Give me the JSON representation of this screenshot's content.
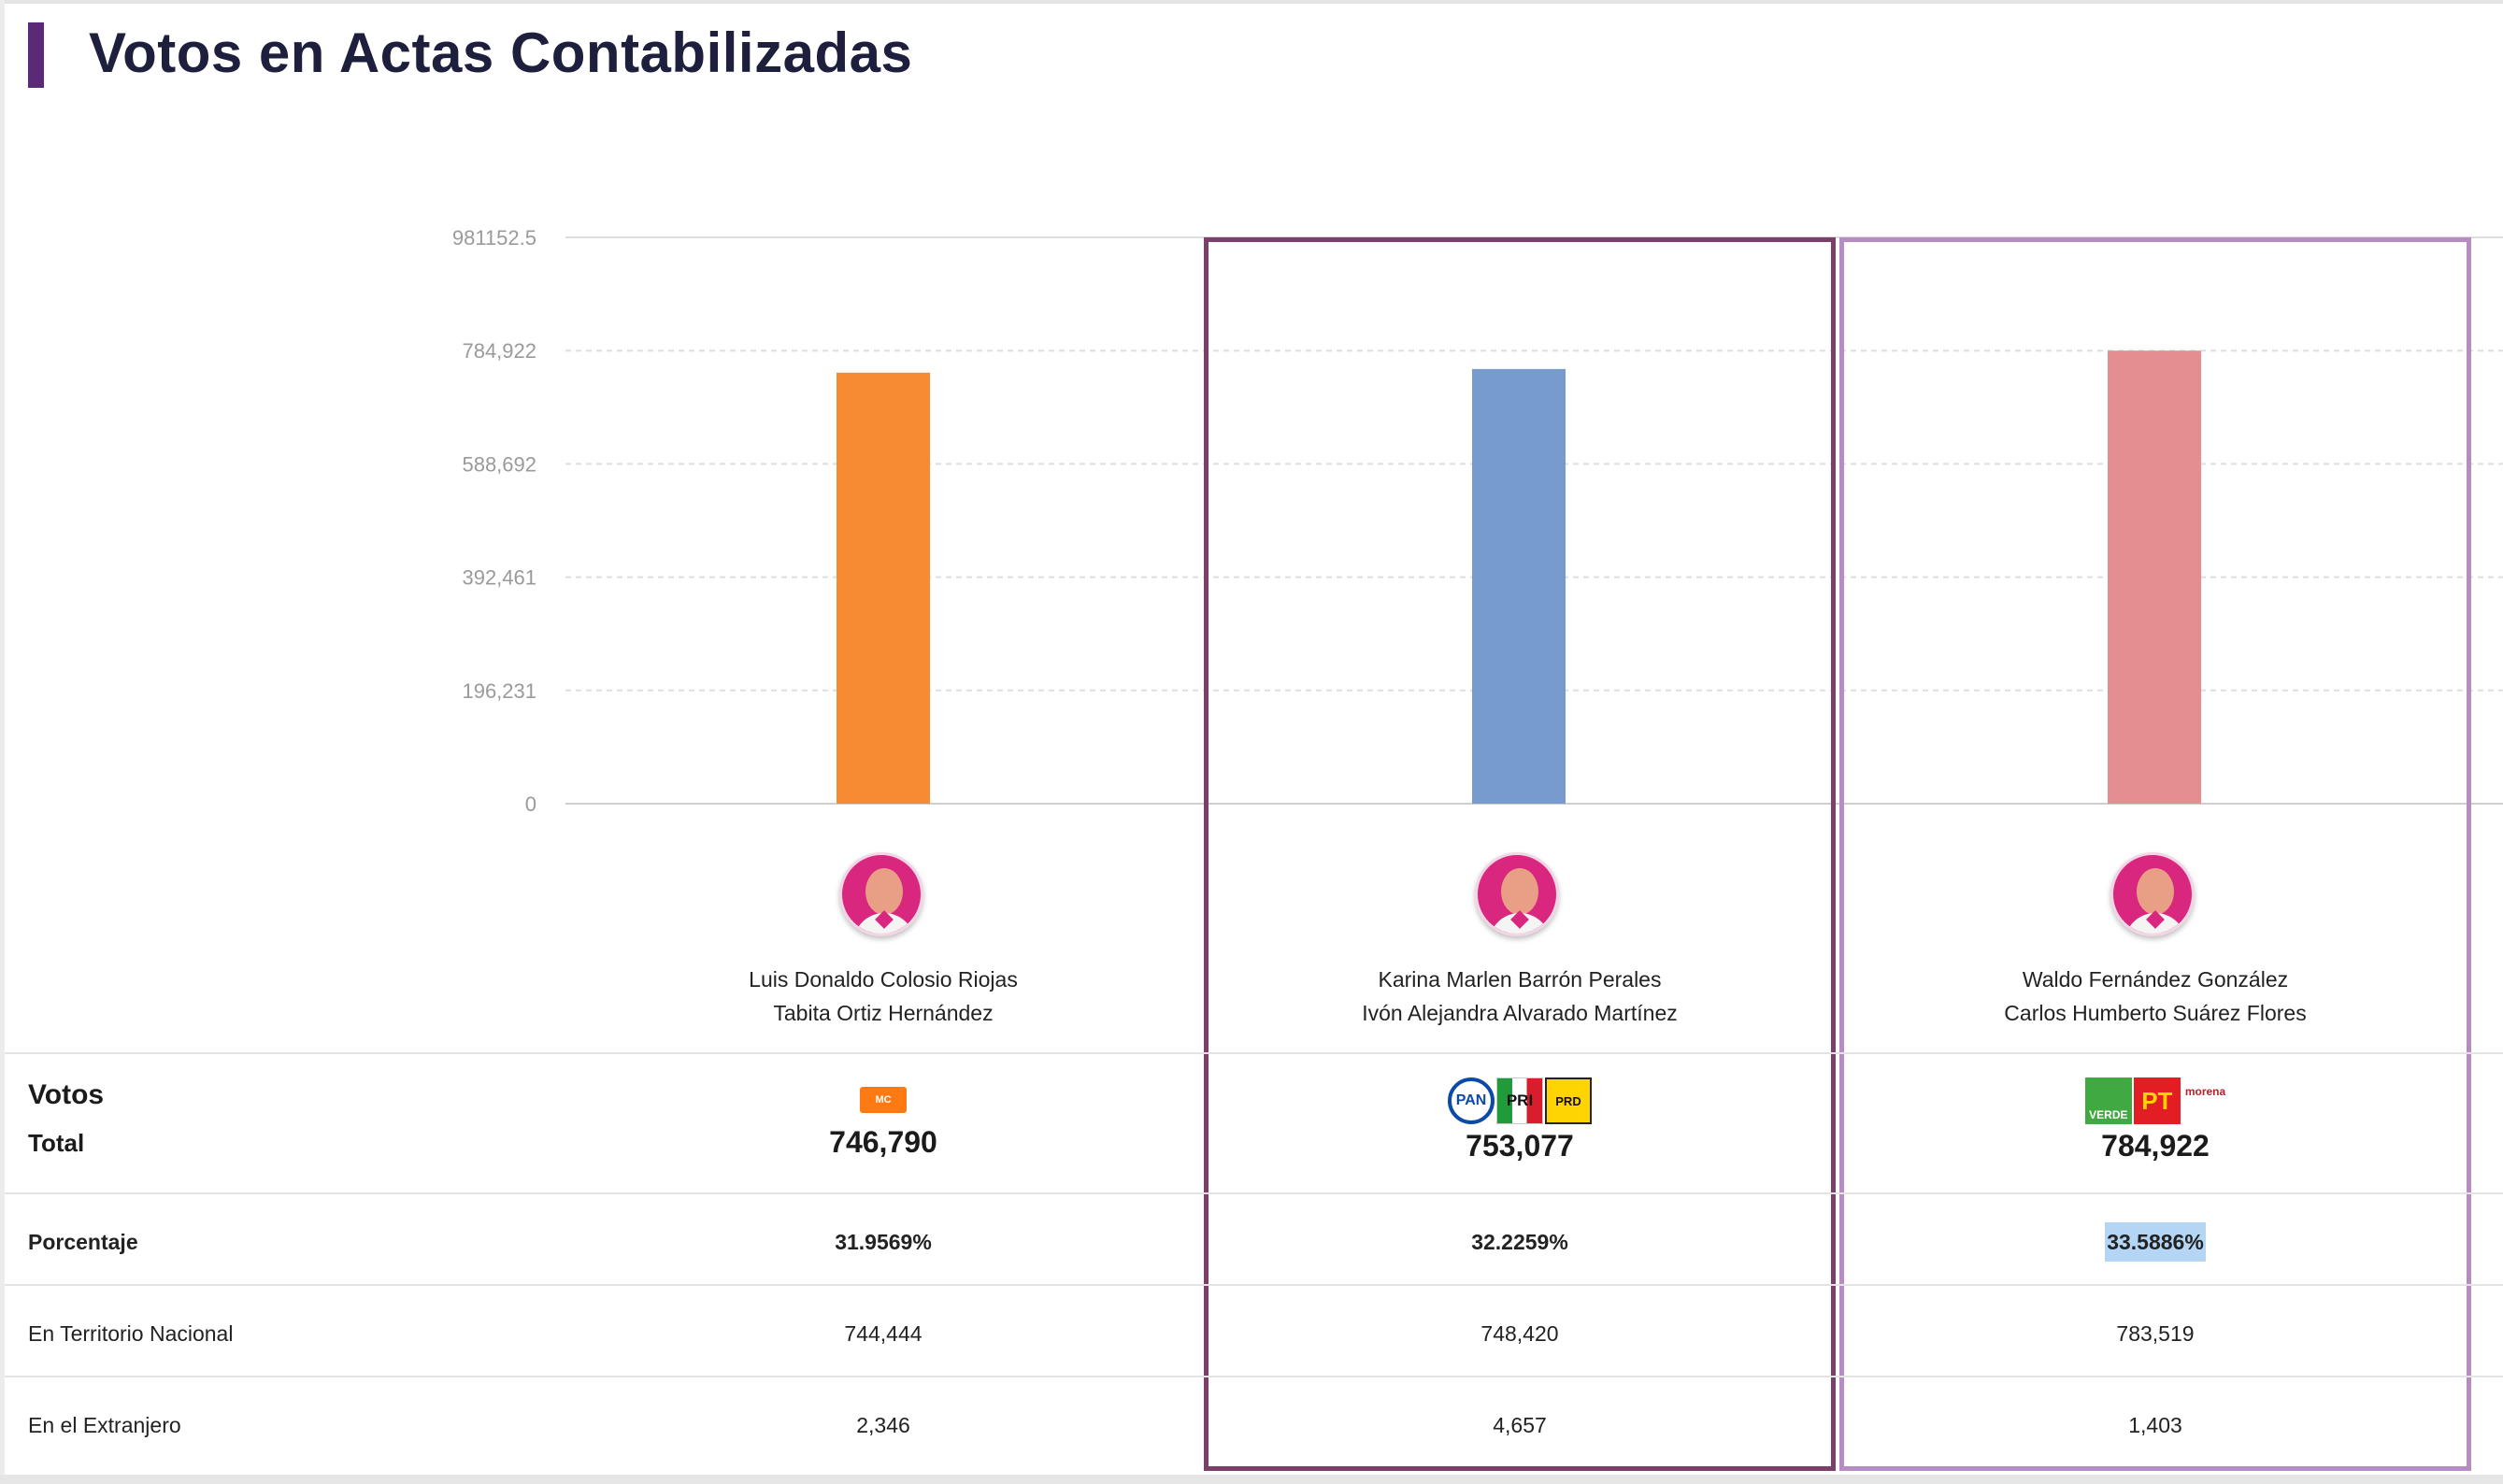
{
  "header": {
    "title": "Votos en Actas Contabilizadas"
  },
  "chart_data": {
    "type": "bar",
    "categories": [
      "Luis Donaldo Colosio Riojas / Tabita Ortiz Hernández",
      "Karina Marlen Barrón Perales / Ivón Alejandra Alvarado Martínez",
      "Waldo Fernández González / Carlos Humberto Suárez Flores"
    ],
    "values": [
      746790,
      753077,
      784922
    ],
    "ylim": [
      0,
      981152.5
    ],
    "yticks": [
      "0",
      "196,231",
      "392,461",
      "588,692",
      "784,922",
      "981152.5"
    ],
    "ytick_values": [
      0,
      196231,
      392461,
      588692,
      784922,
      981152.5
    ],
    "grid": true,
    "colors": [
      "#f68b33",
      "#789bcd",
      "#e48e90"
    ]
  },
  "candidates": [
    {
      "line1": "Luis Donaldo Colosio Riojas",
      "line2": "Tabita Ortiz Hernández",
      "parties": [
        {
          "icon": "movimiento-ciudadano-logo",
          "text": "MOVIMIENTO CIUDADANO"
        }
      ],
      "total": "746,790",
      "porcentaje": "31.9569%",
      "territorio": "744,444",
      "extranjero": "2,346"
    },
    {
      "line1": "Karina Marlen Barrón Perales",
      "line2": "Ivón Alejandra Alvarado Martínez",
      "parties": [
        {
          "icon": "pan-logo",
          "text": "PAN"
        },
        {
          "icon": "pri-logo",
          "text": "PRI"
        },
        {
          "icon": "prd-logo",
          "text": "PRD"
        }
      ],
      "total": "753,077",
      "porcentaje": "32.2259%",
      "territorio": "748,420",
      "extranjero": "4,657"
    },
    {
      "line1": "Waldo Fernández González",
      "line2": "Carlos Humberto Suárez Flores",
      "parties": [
        {
          "icon": "verde-logo",
          "text": "VERDE"
        },
        {
          "icon": "pt-logo",
          "text": "PT"
        },
        {
          "icon": "morena-logo",
          "text": "morena"
        }
      ],
      "total": "784,922",
      "porcentaje": "33.5886%",
      "territorio": "783,519",
      "extranjero": "1,403"
    }
  ],
  "table": {
    "votos_label": "Votos",
    "total_label": "Total",
    "porcentaje_label": "Porcentaje",
    "territorio_label": "En Territorio Nacional",
    "extranjero_label": "En el Extranjero"
  }
}
